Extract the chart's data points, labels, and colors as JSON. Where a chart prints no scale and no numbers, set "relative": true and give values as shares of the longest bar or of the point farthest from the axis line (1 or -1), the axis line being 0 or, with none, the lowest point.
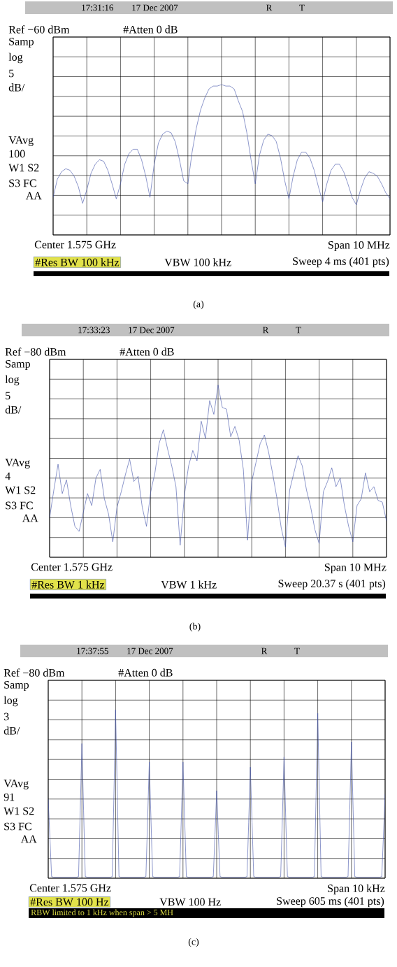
{
  "chart_data": [
    {
      "type": "line",
      "relative": true,
      "grid": true,
      "categories": [
        null,
        null,
        null,
        null,
        null,
        null,
        null,
        null,
        null,
        null,
        null,
        null,
        null,
        null,
        null,
        null,
        null,
        null,
        null,
        null,
        null,
        null,
        null,
        null,
        null,
        null,
        null,
        null,
        null,
        null,
        null,
        null,
        null,
        null,
        null,
        null,
        null,
        null,
        null,
        null,
        null,
        null,
        null,
        null,
        null,
        null,
        null,
        null,
        null,
        null,
        null,
        null,
        null,
        null,
        null,
        null,
        null,
        null,
        null,
        null,
        null,
        null,
        null,
        null,
        null,
        null,
        null,
        null,
        null,
        null,
        null,
        null,
        null,
        null,
        null,
        null,
        null,
        null,
        null,
        null,
        null
      ],
      "series": [
        {
          "color": "#4050a8",
          "values": [
            0.25,
            0.37,
            0.42,
            0.44,
            0.43,
            0.39,
            0.32,
            0.21,
            0.3,
            0.41,
            0.47,
            0.5,
            0.49,
            0.43,
            0.34,
            0.24,
            0.34,
            0.47,
            0.54,
            0.57,
            0.57,
            0.5,
            0.39,
            0.25,
            0.47,
            0.61,
            0.67,
            0.69,
            0.68,
            0.62,
            0.5,
            0.36,
            0.34,
            0.55,
            0.71,
            0.83,
            0.91,
            0.97,
            0.99,
            0.99,
            1,
            0.99,
            0.99,
            0.97,
            0.89,
            0.82,
            0.68,
            0.5,
            0.34,
            0.53,
            0.63,
            0.67,
            0.66,
            0.62,
            0.51,
            0.36,
            0.24,
            0.39,
            0.5,
            0.55,
            0.55,
            0.51,
            0.43,
            0.32,
            0.22,
            0.34,
            0.43,
            0.47,
            0.47,
            0.42,
            0.34,
            0.25,
            0.2,
            0.3,
            0.38,
            0.42,
            0.41,
            0.39,
            0.34,
            0.28,
            0.24
          ]
        }
      ],
      "annotations": [
        "17:31:16",
        "17 Dec 2007",
        "R",
        "T",
        "Ref −60 dBm",
        "#Atten 0 dB",
        "Samp",
        "log",
        "5",
        "dB/",
        "VAvg",
        "100",
        "W1 S2",
        "S3 FC",
        "AA",
        "Center 1.575 GHz",
        "Span 10 MHz",
        "#Res BW 100 kHz",
        "VBW 100 kHz",
        "Sweep 4 ms (401 pts)",
        "(a)"
      ]
    },
    {
      "type": "line",
      "relative": true,
      "grid": true,
      "categories": [
        null,
        null,
        null,
        null,
        null,
        null,
        null,
        null,
        null,
        null,
        null,
        null,
        null,
        null,
        null,
        null,
        null,
        null,
        null,
        null,
        null,
        null,
        null,
        null,
        null,
        null,
        null,
        null,
        null,
        null,
        null,
        null,
        null,
        null,
        null,
        null,
        null,
        null,
        null,
        null,
        null,
        null,
        null,
        null,
        null,
        null,
        null,
        null,
        null,
        null,
        null,
        null,
        null,
        null,
        null,
        null,
        null,
        null,
        null,
        null,
        null,
        null,
        null,
        null,
        null,
        null,
        null,
        null,
        null,
        null,
        null,
        null,
        null,
        null,
        null,
        null,
        null,
        null,
        null,
        null,
        null
      ],
      "series": [
        {
          "color": "#4050a8",
          "values": [
            0.23,
            0.39,
            0.54,
            0.37,
            0.45,
            0.3,
            0.18,
            0.15,
            0.26,
            0.37,
            0.3,
            0.46,
            0.51,
            0.34,
            0.25,
            0.09,
            0.29,
            0.38,
            0.48,
            0.57,
            0.44,
            0.47,
            0.29,
            0.18,
            0.38,
            0.49,
            0.66,
            0.74,
            0.63,
            0.53,
            0.41,
            0.07,
            0.36,
            0.53,
            0.62,
            0.56,
            0.79,
            0.69,
            0.91,
            0.83,
            1,
            0.87,
            0.86,
            0.7,
            0.76,
            0.68,
            0.51,
            0.1,
            0.44,
            0.55,
            0.66,
            0.71,
            0.61,
            0.48,
            0.34,
            0.17,
            0.06,
            0.39,
            0.49,
            0.59,
            0.53,
            0.39,
            0.29,
            0.16,
            0.08,
            0.38,
            0.44,
            0.52,
            0.41,
            0.46,
            0.3,
            0.18,
            0.09,
            0.3,
            0.34,
            0.49,
            0.38,
            0.41,
            0.33,
            0.32,
            0.21
          ]
        }
      ],
      "annotations": [
        "17:33:23",
        "17 Dec 2007",
        "R",
        "T",
        "Ref −80 dBm",
        "#Atten 0 dB",
        "Samp",
        "log",
        "5",
        "dB/",
        "VAvg",
        "4",
        "W1 S2",
        "S3 FC",
        "AA",
        "Center 1.575 GHz",
        "Span 10 MHz",
        "#Res BW 1 kHz",
        "VBW 1 kHz",
        "Sweep 20.37 s (401 pts)",
        "(b)"
      ]
    },
    {
      "type": "line",
      "relative": true,
      "grid": true,
      "categories": [
        null,
        null,
        null,
        null,
        null,
        null,
        null,
        null,
        null,
        null,
        null,
        null,
        null,
        null,
        null,
        null,
        null,
        null,
        null,
        null,
        null,
        null,
        null,
        null,
        null,
        null,
        null,
        null,
        null,
        null,
        null,
        null,
        null,
        null,
        null,
        null,
        null,
        null,
        null,
        null,
        null,
        null,
        null,
        null,
        null,
        null,
        null,
        null,
        null,
        null,
        null,
        null,
        null,
        null,
        null,
        null,
        null,
        null,
        null,
        null,
        null,
        null,
        null,
        null,
        null,
        null,
        null,
        null,
        null,
        null,
        null,
        null,
        null,
        null,
        null,
        null,
        null,
        null,
        null,
        null,
        null,
        null,
        null,
        null,
        null,
        null,
        null,
        null,
        null,
        null,
        null,
        null,
        null,
        null,
        null,
        null,
        null,
        null,
        null,
        null,
        null,
        null,
        null,
        null,
        null,
        null,
        null,
        null,
        null,
        null,
        null,
        null,
        null,
        null,
        null,
        null,
        null,
        null,
        null,
        null,
        null,
        null,
        null,
        null,
        null,
        null,
        null,
        null,
        null,
        null,
        null,
        null,
        null,
        null,
        null,
        null,
        null,
        null,
        null,
        null,
        null,
        null,
        null,
        null,
        null,
        null,
        null,
        null,
        null,
        null,
        null,
        null,
        null,
        null,
        null,
        null,
        null,
        null,
        null,
        null,
        null,
        null,
        null,
        null,
        null,
        null,
        null,
        null,
        null,
        null,
        null,
        null,
        null,
        null,
        null,
        null,
        null,
        null,
        null,
        null,
        null,
        null,
        null,
        null,
        null,
        null,
        null,
        null,
        null,
        null,
        null,
        null,
        null,
        null,
        null,
        null,
        null,
        null,
        null,
        null,
        null
      ],
      "series": [
        {
          "color": "#4050a8",
          "values": [
            0.47,
            0.24,
            0.01,
            0.006,
            0.006,
            0.006,
            0.006,
            0.006,
            0.006,
            0.006,
            0.006,
            0.006,
            0.006,
            0.006,
            0.006,
            0.006,
            0.006,
            0.006,
            0.01,
            0.4,
            0.8,
            0.4,
            0.01,
            0.006,
            0.006,
            0.006,
            0.006,
            0.006,
            0.006,
            0.006,
            0.006,
            0.006,
            0.006,
            0.006,
            0.006,
            0.006,
            0.006,
            0.006,
            0.01,
            0.5,
            1,
            0.5,
            0.01,
            0.006,
            0.006,
            0.006,
            0.006,
            0.006,
            0.006,
            0.006,
            0.006,
            0.006,
            0.006,
            0.006,
            0.006,
            0.006,
            0.006,
            0.006,
            0.01,
            0.35,
            0.69,
            0.35,
            0.01,
            0.006,
            0.006,
            0.006,
            0.006,
            0.006,
            0.006,
            0.006,
            0.006,
            0.006,
            0.006,
            0.006,
            0.006,
            0.006,
            0.006,
            0.006,
            0.01,
            0.35,
            0.69,
            0.35,
            0.01,
            0.006,
            0.006,
            0.006,
            0.006,
            0.006,
            0.006,
            0.006,
            0.006,
            0.006,
            0.006,
            0.006,
            0.006,
            0.006,
            0.006,
            0.006,
            0.01,
            0.26,
            0.52,
            0.26,
            0.01,
            0.006,
            0.006,
            0.006,
            0.006,
            0.006,
            0.006,
            0.006,
            0.006,
            0.006,
            0.006,
            0.006,
            0.006,
            0.006,
            0.006,
            0.006,
            0.01,
            0.33,
            0.66,
            0.33,
            0.01,
            0.006,
            0.006,
            0.006,
            0.006,
            0.006,
            0.006,
            0.006,
            0.006,
            0.006,
            0.006,
            0.006,
            0.006,
            0.006,
            0.006,
            0.006,
            0.01,
            0.36,
            0.72,
            0.36,
            0.01,
            0.006,
            0.006,
            0.006,
            0.006,
            0.006,
            0.006,
            0.006,
            0.006,
            0.006,
            0.006,
            0.006,
            0.006,
            0.006,
            0.006,
            0.006,
            0.01,
            0.49,
            0.98,
            0.49,
            0.01,
            0.006,
            0.006,
            0.006,
            0.006,
            0.006,
            0.006,
            0.006,
            0.006,
            0.006,
            0.006,
            0.006,
            0.006,
            0.006,
            0.006,
            0.006,
            0.01,
            0.41,
            0.81,
            0.41,
            0.01,
            0.006,
            0.006,
            0.006,
            0.006,
            0.006,
            0.006,
            0.006,
            0.006,
            0.006,
            0.006,
            0.006,
            0.006,
            0.006,
            0.006,
            0.006,
            0.01,
            0.25,
            0.5
          ]
        }
      ],
      "annotations": [
        "17:37:55",
        "17 Dec 2007",
        "R",
        "T",
        "Ref −80 dBm",
        "#Atten 0 dB",
        "Samp",
        "log",
        "3",
        "dB/",
        "VAvg",
        "91",
        "W1 S2",
        "S3 FC",
        "AA",
        "Center 1.575 GHz",
        "Span 10 kHz",
        "#Res BW 100 Hz",
        "VBW 100 Hz",
        "Sweep 605 ms (401 pts)",
        "RBW limited to 1 kHz when span > 5 MH",
        "(c)"
      ]
    }
  ]
}
